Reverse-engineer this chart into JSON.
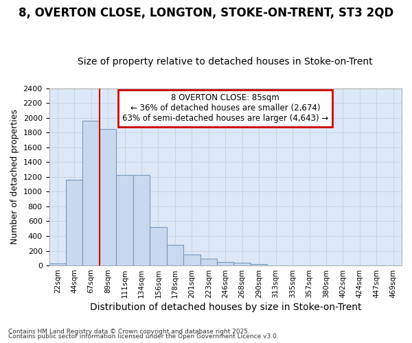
{
  "title1": "8, OVERTON CLOSE, LONGTON, STOKE-ON-TRENT, ST3 2QD",
  "title2": "Size of property relative to detached houses in Stoke-on-Trent",
  "xlabel": "Distribution of detached houses by size in Stoke-on-Trent",
  "ylabel": "Number of detached properties",
  "categories": [
    "22sqm",
    "44sqm",
    "67sqm",
    "89sqm",
    "111sqm",
    "134sqm",
    "156sqm",
    "178sqm",
    "201sqm",
    "223sqm",
    "246sqm",
    "268sqm",
    "290sqm",
    "313sqm",
    "335sqm",
    "357sqm",
    "380sqm",
    "402sqm",
    "424sqm",
    "447sqm",
    "469sqm"
  ],
  "values": [
    25,
    1160,
    1960,
    1850,
    1230,
    1230,
    520,
    275,
    150,
    90,
    50,
    40,
    15,
    5,
    2,
    2,
    2,
    2,
    2,
    2,
    2
  ],
  "bar_color": "#c8d8ee",
  "bar_edge_color": "#7799bb",
  "annotation_text": "8 OVERTON CLOSE: 85sqm\n← 36% of detached houses are smaller (2,674)\n63% of semi-detached houses are larger (4,643) →",
  "annotation_box_color": "#ffffff",
  "annotation_border_color": "#cc0000",
  "property_line_color": "#cc0000",
  "property_line_x": 2.5,
  "ylim": [
    0,
    2400
  ],
  "yticks": [
    0,
    200,
    400,
    600,
    800,
    1000,
    1200,
    1400,
    1600,
    1800,
    2000,
    2200,
    2400
  ],
  "grid_color": "#c8d4e4",
  "bg_color": "#dce8f8",
  "fig_bg_color": "#ffffff",
  "footer1": "Contains HM Land Registry data © Crown copyright and database right 2025.",
  "footer2": "Contains public sector information licensed under the Open Government Licence v3.0.",
  "title1_fontsize": 12,
  "title2_fontsize": 10,
  "ylabel_fontsize": 9,
  "xlabel_fontsize": 10
}
